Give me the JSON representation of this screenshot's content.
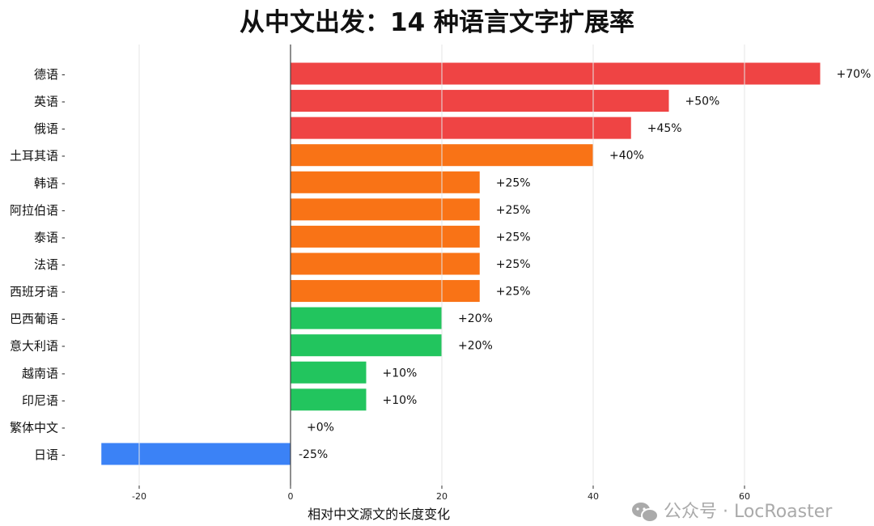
{
  "chart_data": {
    "type": "bar",
    "orientation": "horizontal",
    "title": "从中文出发：14 种语言文字扩展率",
    "xlabel": "相对中文源文的长度变化",
    "ylabel": "",
    "categories": [
      "德语",
      "英语",
      "俄语",
      "土耳其语",
      "韩语",
      "阿拉伯语",
      "泰语",
      "法语",
      "西班牙语",
      "巴西葡语",
      "意大利语",
      "越南语",
      "印尼语",
      "繁体中文",
      "日语"
    ],
    "values": [
      70,
      50,
      45,
      40,
      25,
      25,
      25,
      25,
      25,
      20,
      20,
      10,
      10,
      0,
      -25
    ],
    "data_labels": [
      "+70%",
      "+50%",
      "+45%",
      "+40%",
      "+25%",
      "+25%",
      "+25%",
      "+25%",
      "+25%",
      "+20%",
      "+20%",
      "+10%",
      "+10%",
      "+0%",
      "-25%"
    ],
    "colors": [
      "#EF4444",
      "#EF4444",
      "#EF4444",
      "#F97316",
      "#F97316",
      "#F97316",
      "#F97316",
      "#F97316",
      "#F97316",
      "#22C55E",
      "#22C55E",
      "#22C55E",
      "#22C55E",
      "#22C55E",
      "#3B82F6"
    ],
    "xticks": [
      -20,
      0,
      20,
      40,
      60
    ],
    "xtick_labels": [
      "-20",
      "0",
      "20",
      "40",
      "60"
    ],
    "xlim": [
      -30,
      75
    ],
    "grid": "vertical"
  },
  "watermark": {
    "text": "公众号 · LocRoaster",
    "icon": "wechat-icon"
  }
}
